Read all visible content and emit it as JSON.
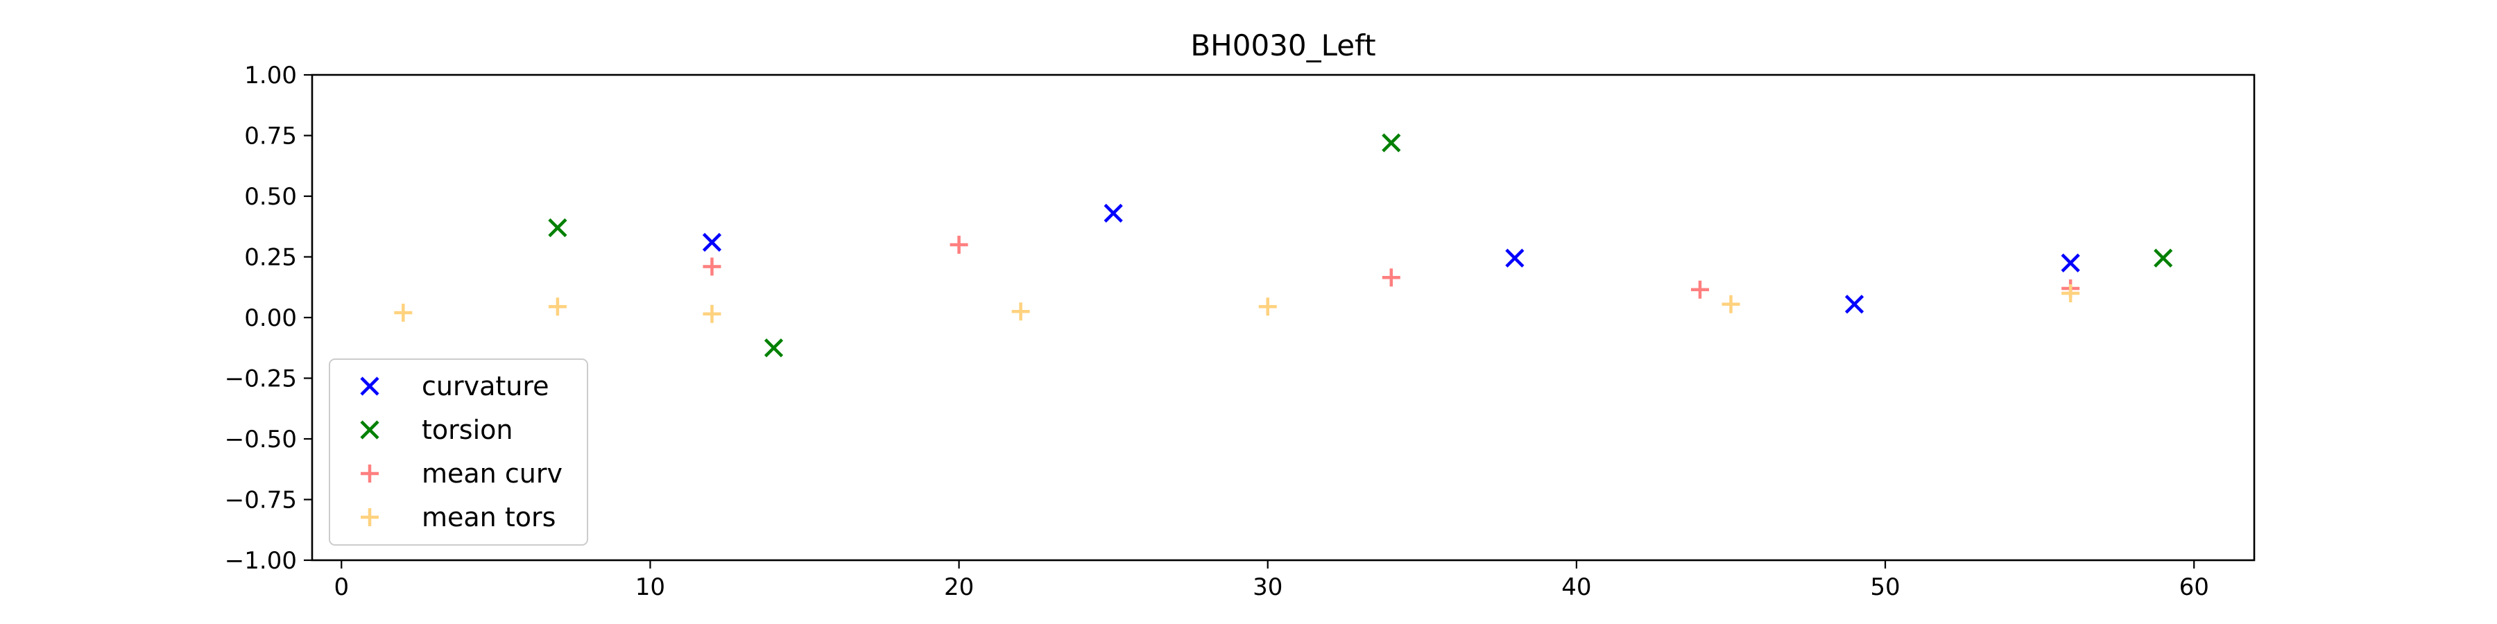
{
  "chart_data": {
    "type": "scatter",
    "title": "BH0030_Left",
    "xlabel": "",
    "ylabel": "",
    "xlim": [
      -0.95,
      61.95
    ],
    "ylim": [
      -1.0,
      1.0
    ],
    "x_ticks": [
      0,
      10,
      20,
      30,
      40,
      50,
      60
    ],
    "y_ticks": [
      -1.0,
      -0.75,
      -0.5,
      -0.25,
      0.0,
      0.25,
      0.5,
      0.75,
      1.0
    ],
    "y_tick_labels": [
      "−1.00",
      "−0.75",
      "−0.50",
      "−0.25",
      "0.00",
      "0.25",
      "0.50",
      "0.75",
      "1.00"
    ],
    "grid": false,
    "legend_position": "lower-left",
    "series": [
      {
        "name": "curvature",
        "marker": "x",
        "color": "#0000ff",
        "points": [
          [
            12,
            0.31
          ],
          [
            25,
            0.43
          ],
          [
            38,
            0.245
          ],
          [
            49,
            0.055
          ],
          [
            56,
            0.225
          ]
        ]
      },
      {
        "name": "torsion",
        "marker": "x",
        "color": "#008000",
        "points": [
          [
            7,
            0.37
          ],
          [
            14,
            -0.125
          ],
          [
            34,
            0.72
          ],
          [
            59,
            0.245
          ]
        ]
      },
      {
        "name": "mean curv",
        "marker": "+",
        "color": "#ff7f7f",
        "points": [
          [
            12,
            0.21
          ],
          [
            20,
            0.3
          ],
          [
            34,
            0.165
          ],
          [
            44,
            0.115
          ],
          [
            56,
            0.12
          ]
        ]
      },
      {
        "name": "mean tors",
        "marker": "+",
        "color": "#ffd27f",
        "points": [
          [
            2,
            0.02
          ],
          [
            7,
            0.045
          ],
          [
            12,
            0.015
          ],
          [
            22,
            0.025
          ],
          [
            30,
            0.045
          ],
          [
            45,
            0.055
          ],
          [
            56,
            0.1
          ]
        ]
      }
    ]
  }
}
